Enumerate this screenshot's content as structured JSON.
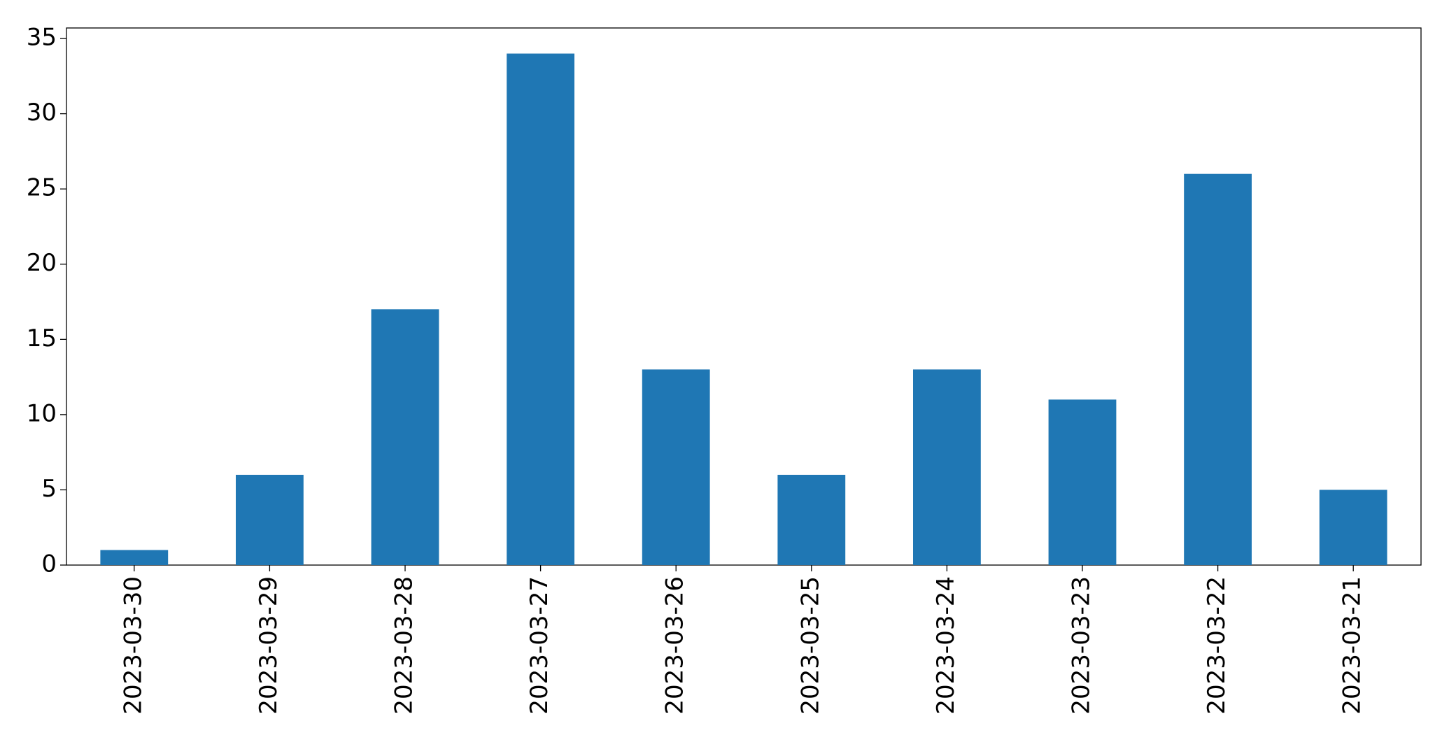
{
  "chart_data": {
    "type": "bar",
    "categories": [
      "2023-03-30",
      "2023-03-29",
      "2023-03-28",
      "2023-03-27",
      "2023-03-26",
      "2023-03-25",
      "2023-03-24",
      "2023-03-23",
      "2023-03-22",
      "2023-03-21"
    ],
    "values": [
      1,
      6,
      17,
      34,
      13,
      6,
      13,
      11,
      26,
      5
    ],
    "color": "#1f77b4",
    "ylim": [
      0,
      35.7
    ],
    "yticks": [
      0,
      5,
      10,
      15,
      20,
      25,
      30,
      35
    ],
    "grid": false
  }
}
